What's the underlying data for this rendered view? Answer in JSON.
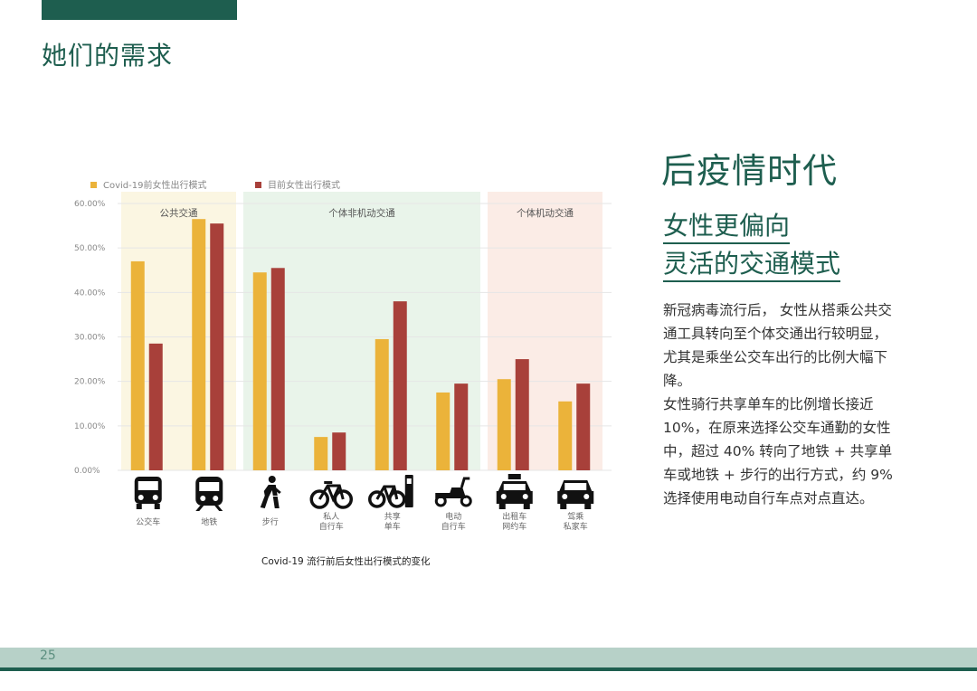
{
  "page": {
    "heading": "她们的需求",
    "page_number": "25"
  },
  "colors": {
    "brand": "#1e5e4f",
    "pre_covid": "#ebb33a",
    "current": "#a8403a",
    "zone_public": "#fbf6e2",
    "zone_nonmotor": "#e9f4ea",
    "zone_motor": "#fbece6",
    "footer_band": "#b7d1c8"
  },
  "sidebar": {
    "title": "后疫情时代",
    "subtitle_line1": "女性更偏向",
    "subtitle_line2": "灵活的交通模式",
    "body_p1": "新冠病毒流行后， 女性从搭乘公共交通工具转向至个体交通出行较明显，尤其是乘坐公交车出行的比例大幅下降。",
    "body_p2": "女性骑行共享单车的比例增长接近10%，在原来选择公交车通勤的女性中，超过 40% 转向了地铁 + 共享单车或地铁 + 步行的出行方式，约 9% 选择使用电动自行车点对点直达。"
  },
  "chart_caption": "Covid-19 流行前后女性出行模式的变化",
  "chart_data": {
    "type": "bar",
    "title": "",
    "xlabel": "",
    "ylabel": "",
    "ylim": [
      0,
      60
    ],
    "yticks": [
      "0.00%",
      "10.00%",
      "20.00%",
      "30.00%",
      "40.00%",
      "50.00%",
      "60.00%"
    ],
    "grid": true,
    "legend_position": "top-left",
    "categories": [
      "公交车",
      "地铁",
      "步行",
      "私人自行车",
      "共享单车",
      "电动自行车",
      "出租车/网约车",
      "驾乘私家车"
    ],
    "category_icons": [
      "bus-icon",
      "metro-icon",
      "walking-icon",
      "bicycle-icon",
      "shared-bike-icon",
      "scooter-icon",
      "taxi-icon",
      "car-icon"
    ],
    "zones": [
      {
        "label": "公共交通",
        "from": 0,
        "to": 1,
        "color": "#fbf6e2"
      },
      {
        "label": "个体非机动交通",
        "from": 2,
        "to": 5,
        "color": "#e9f4ea"
      },
      {
        "label": "个体机动交通",
        "from": 6,
        "to": 7,
        "color": "#fbece6"
      }
    ],
    "series": [
      {
        "name": "Covid-19前女性出行模式",
        "color": "#ebb33a",
        "values": [
          47,
          56.5,
          44.5,
          7.5,
          29.5,
          17.5,
          20.5,
          15.5
        ]
      },
      {
        "name": "目前女性出行模式",
        "color": "#a8403a",
        "values": [
          28.5,
          55.5,
          45.5,
          8.5,
          38,
          19.5,
          25,
          19.5
        ]
      }
    ]
  }
}
